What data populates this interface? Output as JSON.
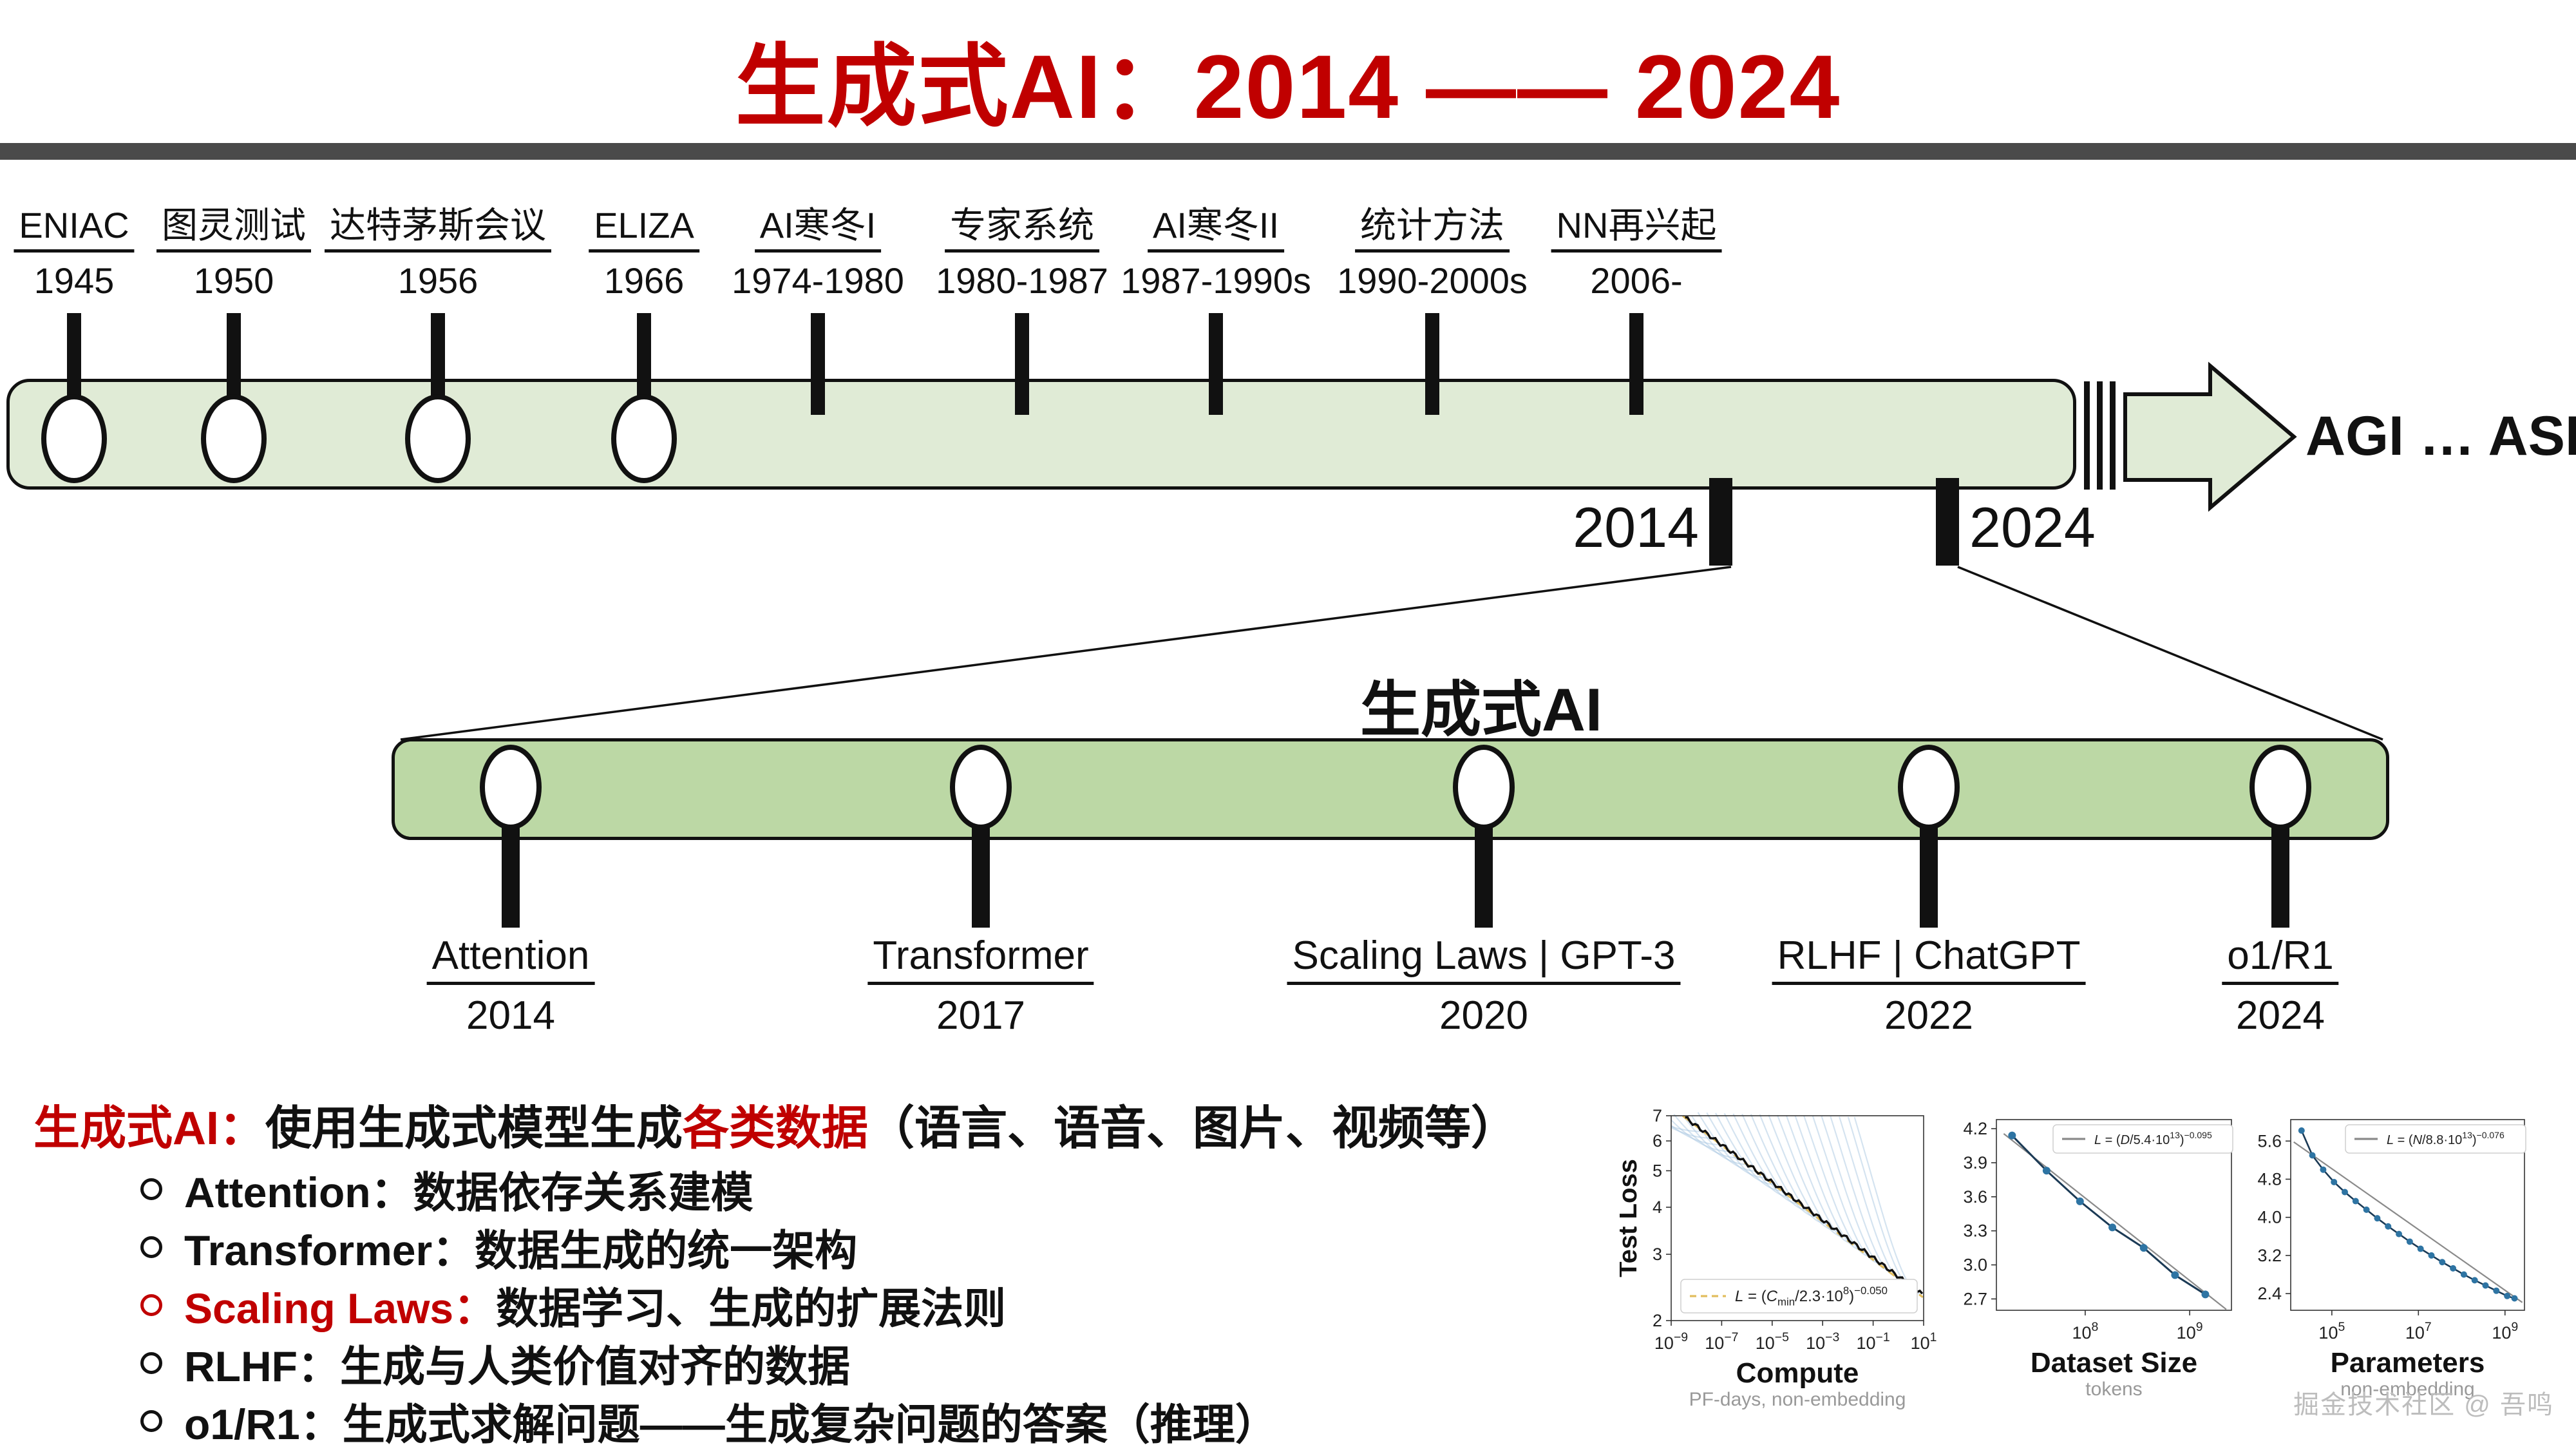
{
  "title": "生成式AI：2014 —— 2024",
  "colors": {
    "accent_red": "#c00000",
    "bar_top_fill": "#e0ebd6",
    "bar_zoom_fill": "#bcd8a5",
    "separator_gray": "#4a4a4a",
    "outline_black": "#111111"
  },
  "timeline_top": {
    "milestones": [
      {
        "label": "ENIAC",
        "year": "1945",
        "circle": true
      },
      {
        "label": "图灵测试",
        "year": "1950",
        "circle": true
      },
      {
        "label": "达特茅斯会议",
        "year": "1956",
        "circle": true
      },
      {
        "label": "ELIZA",
        "year": "1966",
        "circle": true
      },
      {
        "label": "AI寒冬I",
        "year": "1974-1980",
        "circle": false
      },
      {
        "label": "专家系统",
        "year": "1980-1987",
        "circle": false
      },
      {
        "label": "AI寒冬II",
        "year": "1987-1990s",
        "circle": false
      },
      {
        "label": "统计方法",
        "year": "1990-2000s",
        "circle": false
      },
      {
        "label": "NN再兴起",
        "year": "2006-",
        "circle": false
      }
    ],
    "range_markers": [
      {
        "label": "2014"
      },
      {
        "label": "2024"
      }
    ],
    "arrow_label": "AGI … ASI"
  },
  "timeline_zoom": {
    "title": "生成式AI",
    "milestones": [
      {
        "label": "Attention",
        "year": "2014"
      },
      {
        "label": "Transformer",
        "year": "2017"
      },
      {
        "label": "Scaling Laws | GPT-3",
        "year": "2020"
      },
      {
        "label": "RLHF | ChatGPT",
        "year": "2022"
      },
      {
        "label": "o1/R1",
        "year": "2024"
      }
    ]
  },
  "description": {
    "intro": [
      {
        "text": "生成式AI：",
        "red": true
      },
      {
        "text": "使用生成式模型生成",
        "red": false
      },
      {
        "text": "各类数据",
        "red": true
      },
      {
        "text": "（语言、语音、图片、视频等）",
        "red": false
      }
    ],
    "bullets": [
      {
        "keyword": "Attention：",
        "desc": "数据依存关系建模",
        "red": false
      },
      {
        "keyword": "Transformer：",
        "desc": "数据生成的统一架构",
        "red": false
      },
      {
        "keyword": "Scaling Laws：",
        "desc": "数据学习、生成的扩展法则",
        "red": true
      },
      {
        "keyword": "RLHF：",
        "desc": "生成与人类价值对齐的数据",
        "red": false
      },
      {
        "keyword": "o1/R1：",
        "desc": "生成式求解问题——生成复杂问题的答案（推理）",
        "red": false
      }
    ]
  },
  "watermark": "掘金技术社区 @ 吾鸣",
  "chart_data": [
    {
      "type": "line",
      "name": "compute-scaling",
      "xlabel": "Compute",
      "xlabel_sub": "PF-days, non-embedding",
      "ylabel": "Test Loss",
      "xscale": "log",
      "yscale": "log",
      "xlim_exp": [
        -9,
        1
      ],
      "ylim": [
        2,
        7
      ],
      "xticks_exp": [
        -9,
        -7,
        -5,
        -3,
        -1,
        1
      ],
      "yticks": [
        2,
        3,
        4,
        5,
        6,
        7
      ],
      "frontier_powerlaw": {
        "scale": 230000000,
        "exponent": -0.05
      },
      "fan_curve_count": 26,
      "legend_segments": [
        {
          "t": "L",
          "i": true
        },
        {
          "t": " = ("
        },
        {
          "t": "C",
          "i": true
        },
        {
          "t": "min",
          "sub": true
        },
        {
          "t": "/2.3·10"
        },
        {
          "t": "8",
          "sup": true
        },
        {
          "t": ")"
        },
        {
          "t": "−0.050",
          "sup": true
        }
      ],
      "legend_pos": "bottom-left",
      "fit_color": "#e2bd5e",
      "fan_color": "#a9c7e2",
      "envelope_color": "#111111"
    },
    {
      "type": "line",
      "name": "dataset-scaling",
      "xlabel": "Dataset Size",
      "xlabel_sub": "tokens",
      "ylabel": "",
      "xscale": "log",
      "yscale": "linear",
      "xlim_exp": [
        7.15,
        9.4
      ],
      "ylim": [
        2.6,
        4.28
      ],
      "xticks_exp": [
        8,
        9
      ],
      "yticks": [
        2.7,
        3.0,
        3.3,
        3.6,
        3.9,
        4.2
      ],
      "points_logx": [
        7.3,
        7.63,
        7.95,
        8.26,
        8.56,
        8.86,
        9.15
      ],
      "points_y": [
        4.14,
        3.83,
        3.56,
        3.33,
        3.15,
        2.91,
        2.74
      ],
      "fit_powerlaw": {
        "scale": 54000000000000,
        "exponent": -0.095
      },
      "legend_segments": [
        {
          "t": "L",
          "i": true
        },
        {
          "t": " = ("
        },
        {
          "t": "D",
          "i": true
        },
        {
          "t": "/5.4·10"
        },
        {
          "t": "13",
          "sup": true
        },
        {
          "t": ")"
        },
        {
          "t": "−0.095",
          "sup": true
        }
      ],
      "legend_pos": "top-right",
      "line_color": "#1b3a55",
      "dot_color": "#2e74a3",
      "fit_color": "#8a8a8a"
    },
    {
      "type": "line",
      "name": "parameters-scaling",
      "xlabel": "Parameters",
      "xlabel_sub": "non-embedding",
      "ylabel": "",
      "xscale": "log",
      "yscale": "linear",
      "xlim_exp": [
        4.05,
        9.45
      ],
      "ylim": [
        2.05,
        6.05
      ],
      "xticks_exp": [
        5,
        7,
        9
      ],
      "yticks": [
        2.4,
        3.2,
        4.0,
        4.8,
        5.6
      ],
      "points_logx": [
        4.3,
        4.55,
        4.8,
        5.05,
        5.3,
        5.55,
        5.8,
        6.05,
        6.3,
        6.55,
        6.8,
        7.05,
        7.3,
        7.55,
        7.8,
        8.05,
        8.3,
        8.55,
        8.8,
        9.05,
        9.22
      ],
      "points_y": [
        5.82,
        5.3,
        5.0,
        4.74,
        4.53,
        4.34,
        4.16,
        3.98,
        3.81,
        3.65,
        3.49,
        3.34,
        3.2,
        3.06,
        2.93,
        2.8,
        2.68,
        2.57,
        2.46,
        2.35,
        2.3
      ],
      "fit_powerlaw": {
        "scale": 88000000000000,
        "exponent": -0.076
      },
      "legend_segments": [
        {
          "t": "L",
          "i": true
        },
        {
          "t": " = ("
        },
        {
          "t": "N",
          "i": true
        },
        {
          "t": "/8.8·10"
        },
        {
          "t": "13",
          "sup": true
        },
        {
          "t": ")"
        },
        {
          "t": "−0.076",
          "sup": true
        }
      ],
      "legend_pos": "top-right",
      "line_color": "#1b3a55",
      "dot_color": "#2e74a3",
      "fit_color": "#8a8a8a"
    }
  ]
}
